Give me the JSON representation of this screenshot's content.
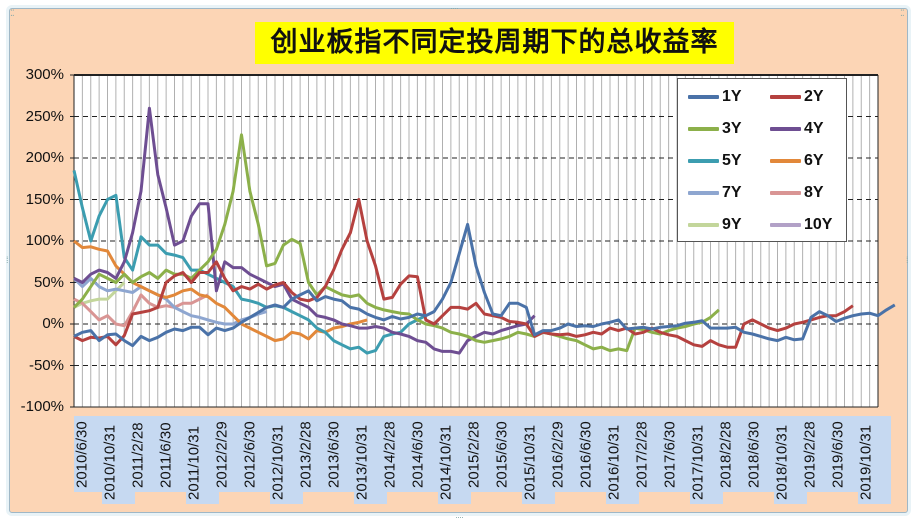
{
  "chart_data": {
    "type": "line",
    "title": "创业板指不同定投周期下的总收益率",
    "xlabel": "",
    "ylabel": "",
    "ylim": [
      -1.0,
      3.0
    ],
    "yticks": [
      "300%",
      "250%",
      "200%",
      "150%",
      "100%",
      "50%",
      "0%",
      "-50%",
      "-100%"
    ],
    "grid": {
      "horizontal": "dashed",
      "vertical": "solid-monthly"
    },
    "legend_position": "upper-right-inside",
    "categories": [
      "2010/6/30",
      "2010/10/31",
      "2011/2/28",
      "2011/6/30",
      "2011/10/31",
      "2012/2/29",
      "2012/6/30",
      "2012/10/31",
      "2013/2/28",
      "2013/6/30",
      "2013/10/31",
      "2014/2/28",
      "2014/6/30",
      "2014/10/31",
      "2015/2/28",
      "2015/6/30",
      "2015/10/31",
      "2016/2/29",
      "2016/6/30",
      "2016/10/31",
      "2017/2/28",
      "2017/6/30",
      "2017/10/31",
      "2018/2/28",
      "2018/6/30",
      "2018/10/31",
      "2019/2/28",
      "2019/6/30",
      "2019/10/31"
    ],
    "x_note": "monthly points, index 0 = 2010/6",
    "series": [
      {
        "name": "1Y",
        "color": "#4a72a8",
        "start": 0,
        "values": [
          -0.15,
          -0.1,
          -0.08,
          -0.2,
          -0.13,
          -0.12,
          -0.2,
          -0.26,
          -0.15,
          -0.2,
          -0.16,
          -0.1,
          -0.06,
          -0.08,
          -0.04,
          -0.04,
          -0.13,
          -0.05,
          -0.08,
          -0.05,
          0.02,
          0.08,
          0.14,
          0.2,
          0.23,
          0.2,
          0.3,
          0.35,
          0.4,
          0.28,
          0.33,
          0.3,
          0.28,
          0.2,
          0.18,
          0.12,
          0.08,
          0.05,
          0.09,
          0.06,
          0.08,
          0.12,
          0.1,
          0.15,
          0.3,
          0.5,
          0.85,
          1.2,
          0.7,
          0.38,
          0.12,
          0.1,
          0.25,
          0.25,
          0.2,
          -0.13,
          -0.08,
          -0.08,
          -0.05,
          0.0,
          -0.03,
          -0.02,
          -0.03,
          0.0,
          0.02,
          0.05,
          -0.06,
          -0.05,
          -0.04,
          -0.06,
          -0.04,
          -0.03,
          -0.02,
          0.01,
          0.02,
          0.04,
          -0.05,
          -0.05,
          -0.05,
          -0.04,
          -0.1,
          -0.12,
          -0.15,
          -0.18,
          -0.2,
          -0.16,
          -0.19,
          -0.18,
          0.08,
          0.15,
          0.1,
          0.03,
          0.07,
          0.1,
          0.12,
          0.13,
          0.1,
          0.17,
          0.23
        ]
      },
      {
        "name": "2Y",
        "color": "#b5413f",
        "start": 0,
        "values": [
          -0.15,
          -0.2,
          -0.16,
          -0.17,
          -0.15,
          -0.25,
          -0.14,
          0.12,
          0.14,
          0.16,
          0.2,
          0.5,
          0.58,
          0.62,
          0.5,
          0.62,
          0.62,
          0.75,
          0.55,
          0.4,
          0.45,
          0.42,
          0.48,
          0.42,
          0.47,
          0.5,
          0.38,
          0.3,
          0.28,
          0.32,
          0.45,
          0.65,
          0.9,
          1.1,
          1.5,
          1.0,
          0.7,
          0.3,
          0.32,
          0.48,
          0.58,
          0.57,
          0.05,
          0.0,
          0.1,
          0.2,
          0.2,
          0.18,
          0.25,
          0.12,
          0.1,
          0.08,
          0.03,
          0.02,
          0.0,
          -0.15,
          -0.1,
          -0.12,
          -0.13,
          -0.12,
          -0.15,
          -0.13,
          -0.1,
          -0.12,
          -0.05,
          -0.08,
          -0.05,
          -0.12,
          -0.1,
          -0.05,
          -0.1,
          -0.13,
          -0.15,
          -0.2,
          -0.25,
          -0.27,
          -0.2,
          -0.25,
          -0.28,
          -0.28,
          0.0,
          0.05,
          0.0,
          -0.05,
          -0.08,
          -0.05,
          0.0,
          0.02,
          0.05,
          0.08,
          0.1,
          0.1,
          0.15,
          0.22
        ]
      },
      {
        "name": "3Y",
        "color": "#8cb04a",
        "start": 0,
        "values": [
          0.2,
          0.3,
          0.45,
          0.6,
          0.55,
          0.5,
          0.6,
          0.5,
          0.57,
          0.62,
          0.55,
          0.65,
          0.6,
          0.6,
          0.55,
          0.65,
          0.75,
          0.9,
          1.2,
          1.6,
          2.28,
          1.6,
          1.2,
          0.7,
          0.73,
          0.95,
          1.02,
          0.97,
          0.5,
          0.35,
          0.45,
          0.4,
          0.35,
          0.33,
          0.35,
          0.25,
          0.2,
          0.17,
          0.15,
          0.13,
          0.12,
          0.05,
          0.0,
          -0.02,
          -0.05,
          -0.1,
          -0.12,
          -0.15,
          -0.2,
          -0.22,
          -0.2,
          -0.18,
          -0.15,
          -0.1,
          -0.12,
          -0.15,
          -0.1,
          -0.12,
          -0.15,
          -0.18,
          -0.2,
          -0.25,
          -0.3,
          -0.28,
          -0.32,
          -0.3,
          -0.32,
          -0.05,
          -0.07,
          -0.1,
          -0.12,
          -0.08,
          -0.05,
          -0.03,
          0.0,
          0.02,
          0.08,
          0.17
        ]
      },
      {
        "name": "4Y",
        "color": "#6e4e92",
        "start": 0,
        "values": [
          0.55,
          0.5,
          0.6,
          0.65,
          0.62,
          0.55,
          0.75,
          1.1,
          1.6,
          2.6,
          1.8,
          1.4,
          0.95,
          1.0,
          1.3,
          1.45,
          1.45,
          0.4,
          0.75,
          0.68,
          0.68,
          0.6,
          0.55,
          0.5,
          0.45,
          0.48,
          0.3,
          0.25,
          0.2,
          0.1,
          0.08,
          0.05,
          0.0,
          -0.02,
          -0.05,
          -0.05,
          -0.03,
          -0.05,
          -0.1,
          -0.12,
          -0.15,
          -0.2,
          -0.22,
          -0.3,
          -0.33,
          -0.33,
          -0.35,
          -0.2,
          -0.15,
          -0.1,
          -0.12,
          -0.08,
          -0.05,
          -0.02,
          0.0,
          0.1
        ]
      },
      {
        "name": "5Y",
        "color": "#3c9db0",
        "start": 0,
        "values": [
          1.85,
          1.4,
          1.0,
          1.3,
          1.5,
          1.55,
          0.8,
          0.65,
          1.05,
          0.95,
          0.95,
          0.85,
          0.83,
          0.8,
          0.65,
          0.65,
          0.6,
          0.55,
          0.5,
          0.45,
          0.3,
          0.28,
          0.25,
          0.2,
          0.22,
          0.2,
          0.15,
          0.1,
          0.05,
          -0.05,
          -0.1,
          -0.2,
          -0.25,
          -0.3,
          -0.28,
          -0.35,
          -0.32,
          -0.15,
          -0.12,
          -0.1,
          0.0,
          0.05,
          0.1
        ]
      },
      {
        "name": "6Y",
        "color": "#e2883a",
        "start": 0,
        "values": [
          1.0,
          0.92,
          0.93,
          0.9,
          0.88,
          0.7,
          0.6,
          0.5,
          0.45,
          0.4,
          0.35,
          0.32,
          0.35,
          0.4,
          0.42,
          0.35,
          0.33,
          0.25,
          0.2,
          0.1,
          0.0,
          -0.05,
          -0.1,
          -0.15,
          -0.2,
          -0.18,
          -0.1,
          -0.12,
          -0.18,
          -0.08,
          -0.1,
          -0.05,
          -0.03,
          0.0,
          0.02,
          0.05
        ]
      },
      {
        "name": "7Y",
        "color": "#8ea6d0",
        "start": 0,
        "values": [
          0.55,
          0.45,
          0.55,
          0.45,
          0.4,
          0.42,
          0.4,
          0.38,
          0.45,
          0.4,
          0.35,
          0.3,
          0.2,
          0.15,
          0.1,
          0.08,
          0.05,
          0.02,
          0.0,
          0.0,
          0.05,
          0.08,
          0.12,
          0.15
        ]
      },
      {
        "name": "8Y",
        "color": "#d99594",
        "start": 0,
        "values": [
          0.3,
          0.25,
          0.15,
          0.05,
          0.1,
          0.0,
          -0.02,
          0.15,
          0.35,
          0.25,
          0.2,
          0.22,
          0.2,
          0.25,
          0.25,
          0.3,
          0.35
        ]
      },
      {
        "name": "9Y",
        "color": "#c3d69b",
        "start": 0,
        "values": [
          0.2,
          0.25,
          0.28,
          0.3,
          0.3,
          0.4,
          0.5
        ]
      },
      {
        "name": "10Y",
        "color": "#b2a1c7",
        "start": 0,
        "values": [
          0.55,
          0.5
        ]
      }
    ]
  },
  "legend": {
    "items": [
      {
        "label": "1Y",
        "color": "#4a72a8"
      },
      {
        "label": "2Y",
        "color": "#b5413f"
      },
      {
        "label": "3Y",
        "color": "#8cb04a"
      },
      {
        "label": "4Y",
        "color": "#6e4e92"
      },
      {
        "label": "5Y",
        "color": "#3c9db0"
      },
      {
        "label": "6Y",
        "color": "#e2883a"
      },
      {
        "label": "7Y",
        "color": "#8ea6d0"
      },
      {
        "label": "8Y",
        "color": "#d99594"
      },
      {
        "label": "9Y",
        "color": "#c3d69b"
      },
      {
        "label": "10Y",
        "color": "#b2a1c7"
      }
    ]
  },
  "title": "创业板指不同定投周期下的总收益率",
  "x_labels": [
    "2010/6/30",
    "2010/10/31",
    "2011/2/28",
    "2011/6/30",
    "2011/10/31",
    "2012/2/29",
    "2012/6/30",
    "2012/10/31",
    "2013/2/28",
    "2013/6/30",
    "2013/10/31",
    "2014/2/28",
    "2014/6/30",
    "2014/10/31",
    "2015/2/28",
    "2015/6/30",
    "2015/10/31",
    "2016/2/29",
    "2016/6/30",
    "2016/10/31",
    "2017/2/28",
    "2017/6/30",
    "2017/10/31",
    "2018/2/28",
    "2018/6/30",
    "2018/10/31",
    "2019/2/28",
    "2019/6/30",
    "2019/10/31"
  ],
  "y_labels": [
    "300%",
    "250%",
    "200%",
    "150%",
    "100%",
    "50%",
    "0%",
    "-50%",
    "-100%"
  ],
  "colors": {
    "background": "#fcd5b5",
    "title_bg": "#ffff00",
    "xlabel_bg": "#c6d9f1",
    "plot_bg": "#ffffff"
  }
}
